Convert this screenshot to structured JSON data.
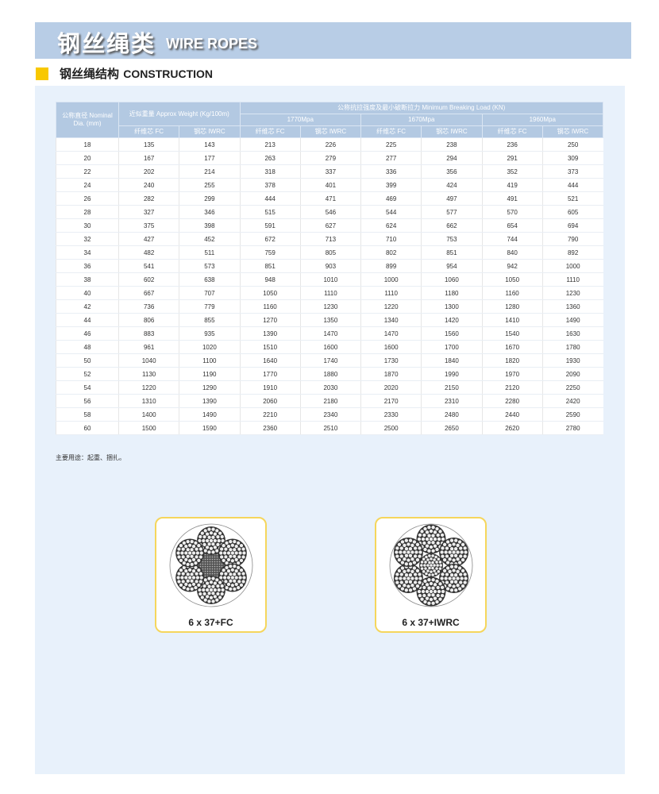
{
  "header": {
    "title_cn": "钢丝绳类",
    "title_en": "WIRE ROPES"
  },
  "section": {
    "title_cn": "钢丝绳结构",
    "title_en": "CONSTRUCTION"
  },
  "accent": "#f8c800",
  "header_bg": "#b8cde6",
  "table": {
    "h_dia": "公称直径 Nominal Dia. (mm)",
    "h_weight": "近似重量 Approx Weight (Kg/100m)",
    "h_mbl": "公称抗拉强度及最小破断拉力 Minimum Breaking Load (KN)",
    "grades": [
      "1770Mpa",
      "1670Mpa",
      "1960Mpa"
    ],
    "fc": "纤维芯 FC",
    "iwrc": "钢芯 IWRC",
    "rows": [
      [
        "18",
        "135",
        "143",
        "213",
        "226",
        "225",
        "238",
        "236",
        "250"
      ],
      [
        "20",
        "167",
        "177",
        "263",
        "279",
        "277",
        "294",
        "291",
        "309"
      ],
      [
        "22",
        "202",
        "214",
        "318",
        "337",
        "336",
        "356",
        "352",
        "373"
      ],
      [
        "24",
        "240",
        "255",
        "378",
        "401",
        "399",
        "424",
        "419",
        "444"
      ],
      [
        "26",
        "282",
        "299",
        "444",
        "471",
        "469",
        "497",
        "491",
        "521"
      ],
      [
        "28",
        "327",
        "346",
        "515",
        "546",
        "544",
        "577",
        "570",
        "605"
      ],
      [
        "30",
        "375",
        "398",
        "591",
        "627",
        "624",
        "662",
        "654",
        "694"
      ],
      [
        "32",
        "427",
        "452",
        "672",
        "713",
        "710",
        "753",
        "744",
        "790"
      ],
      [
        "34",
        "482",
        "511",
        "759",
        "805",
        "802",
        "851",
        "840",
        "892"
      ],
      [
        "36",
        "541",
        "573",
        "851",
        "903",
        "899",
        "954",
        "942",
        "1000"
      ],
      [
        "38",
        "602",
        "638",
        "948",
        "1010",
        "1000",
        "1060",
        "1050",
        "1110"
      ],
      [
        "40",
        "667",
        "707",
        "1050",
        "1110",
        "1110",
        "1180",
        "1160",
        "1230"
      ],
      [
        "42",
        "736",
        "779",
        "1160",
        "1230",
        "1220",
        "1300",
        "1280",
        "1360"
      ],
      [
        "44",
        "806",
        "855",
        "1270",
        "1350",
        "1340",
        "1420",
        "1410",
        "1490"
      ],
      [
        "46",
        "883",
        "935",
        "1390",
        "1470",
        "1470",
        "1560",
        "1540",
        "1630"
      ],
      [
        "48",
        "961",
        "1020",
        "1510",
        "1600",
        "1600",
        "1700",
        "1670",
        "1780"
      ],
      [
        "50",
        "1040",
        "1100",
        "1640",
        "1740",
        "1730",
        "1840",
        "1820",
        "1930"
      ],
      [
        "52",
        "1130",
        "1190",
        "1770",
        "1880",
        "1870",
        "1990",
        "1970",
        "2090"
      ],
      [
        "54",
        "1220",
        "1290",
        "1910",
        "2030",
        "2020",
        "2150",
        "2120",
        "2250"
      ],
      [
        "56",
        "1310",
        "1390",
        "2060",
        "2180",
        "2170",
        "2310",
        "2280",
        "2420"
      ],
      [
        "58",
        "1400",
        "1490",
        "2210",
        "2340",
        "2330",
        "2480",
        "2440",
        "2590"
      ],
      [
        "60",
        "1500",
        "1590",
        "2360",
        "2510",
        "2500",
        "2650",
        "2620",
        "2780"
      ]
    ]
  },
  "note": "主要用途：起重、捆扎。",
  "diagrams": [
    {
      "label": "6 x 37+FC",
      "core": "fiber"
    },
    {
      "label": "6 x 37+IWRC",
      "core": "steel"
    }
  ]
}
